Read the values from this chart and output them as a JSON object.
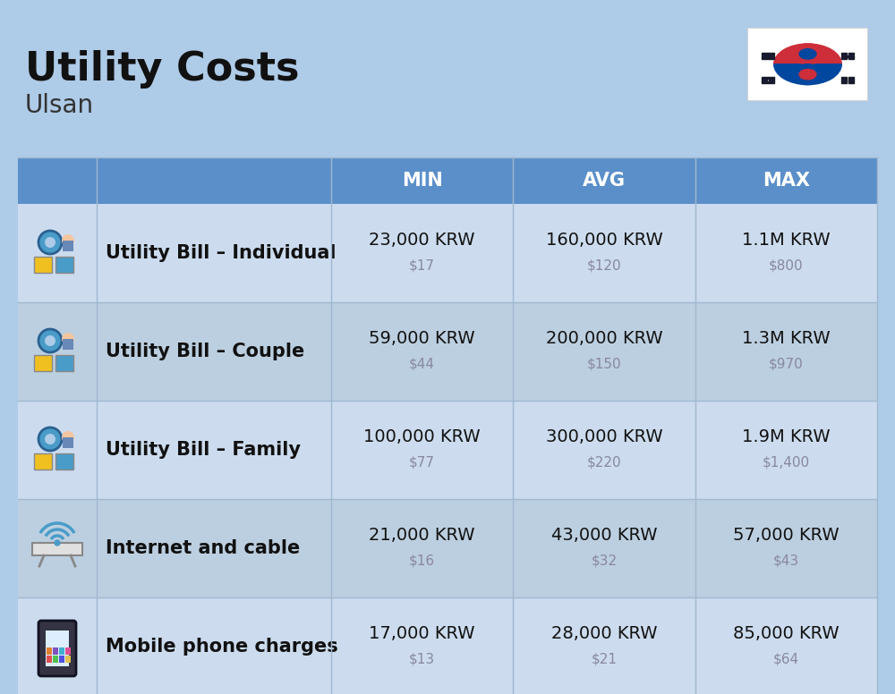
{
  "title": "Utility Costs",
  "subtitle": "Ulsan",
  "background_color": "#aecbe8",
  "header_bg_color": "#5b8fc9",
  "header_text_color": "#ffffff",
  "row_bg_color_odd": "#ccdcee",
  "row_bg_color_even": "#bccfe0",
  "divider_color": "#a0b8d0",
  "col_header_labels": [
    "MIN",
    "AVG",
    "MAX"
  ],
  "rows": [
    {
      "label": "Utility Bill – Individual",
      "min_krw": "23,000 KRW",
      "min_usd": "$17",
      "avg_krw": "160,000 KRW",
      "avg_usd": "$120",
      "max_krw": "1.1M KRW",
      "max_usd": "$800"
    },
    {
      "label": "Utility Bill – Couple",
      "min_krw": "59,000 KRW",
      "min_usd": "$44",
      "avg_krw": "200,000 KRW",
      "avg_usd": "$150",
      "max_krw": "1.3M KRW",
      "max_usd": "$970"
    },
    {
      "label": "Utility Bill – Family",
      "min_krw": "100,000 KRW",
      "min_usd": "$77",
      "avg_krw": "300,000 KRW",
      "avg_usd": "$220",
      "max_krw": "1.9M KRW",
      "max_usd": "$1,400"
    },
    {
      "label": "Internet and cable",
      "min_krw": "21,000 KRW",
      "min_usd": "$16",
      "avg_krw": "43,000 KRW",
      "avg_usd": "$32",
      "max_krw": "57,000 KRW",
      "max_usd": "$43"
    },
    {
      "label": "Mobile phone charges",
      "min_krw": "17,000 KRW",
      "min_usd": "$13",
      "avg_krw": "28,000 KRW",
      "avg_usd": "$21",
      "max_krw": "85,000 KRW",
      "max_usd": "$64"
    }
  ]
}
